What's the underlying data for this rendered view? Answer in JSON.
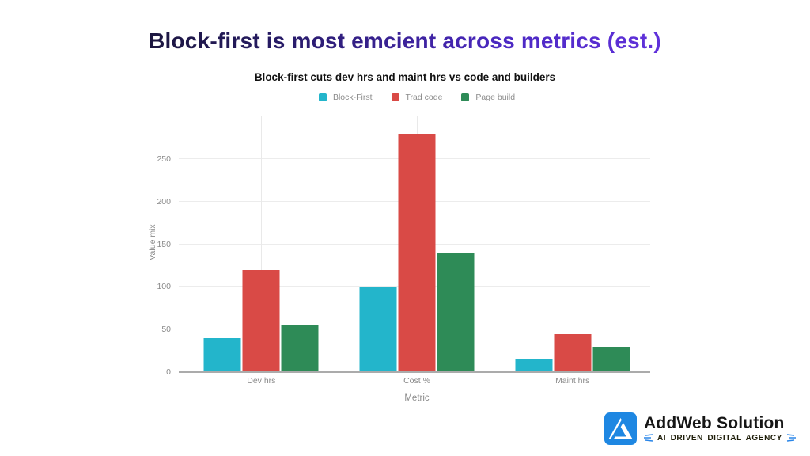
{
  "page": {
    "title": "Block-first is most emcient across metrics (est.)"
  },
  "chart_data": {
    "type": "bar",
    "title": "Block-first cuts dev hrs and maint hrs vs code and builders",
    "xlabel": "Metric",
    "ylabel": "Value mix",
    "categories": [
      "Dev hrs",
      "Cost %",
      "Maint hrs"
    ],
    "series": [
      {
        "name": "Block-First",
        "color": "#23b5cb",
        "values": [
          40,
          100,
          15
        ]
      },
      {
        "name": "Trad code",
        "color": "#d94a46",
        "values": [
          120,
          280,
          45
        ]
      },
      {
        "name": "Page build",
        "color": "#2e8b57",
        "values": [
          55,
          140,
          30
        ]
      }
    ],
    "yticks": [
      0,
      50,
      100,
      150,
      200,
      250
    ],
    "ylim": [
      0,
      300
    ],
    "grid": true,
    "legend_position": "top"
  },
  "footer": {
    "brand": "AddWeb Solution",
    "tagline": "AI DRIVEN DIGITAL AGENCY",
    "logo_color": "#1e87e2"
  },
  "colors": {
    "title_gradient_start": "#121217",
    "title_gradient_mid": "#4b28c2",
    "title_gradient_end": "#7439f2",
    "gridline": "#ececec",
    "axis_line": "#ababab",
    "tick_text": "#8a8a8a"
  }
}
